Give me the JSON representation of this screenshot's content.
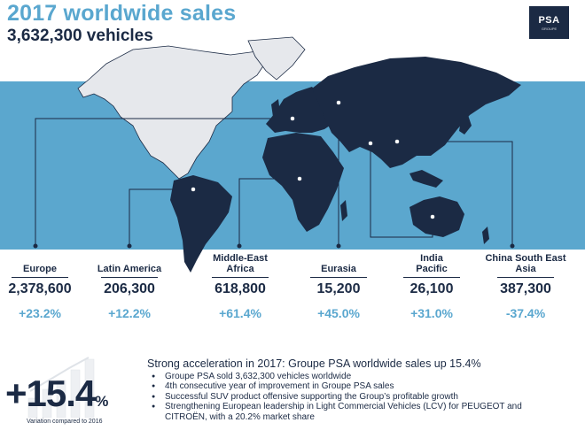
{
  "header": {
    "title": "2017 worldwide sales",
    "subtitle": "3,632,300 vehicles",
    "logo": {
      "text": "PSA",
      "tagline": "GROUPE"
    }
  },
  "regions": [
    {
      "name": "Europe",
      "value": "2,378,600",
      "change": "+23.2%"
    },
    {
      "name": "Latin America",
      "value": "206,300",
      "change": "+12.2%"
    },
    {
      "name": "Middle-East Africa",
      "value": "618,800",
      "change": "+61.4%"
    },
    {
      "name": "Eurasia",
      "value": "15,200",
      "change": "+45.0%"
    },
    {
      "name": "India Pacific",
      "value": "26,100",
      "change": "+31.0%"
    },
    {
      "name": "China South East Asia",
      "value": "387,300",
      "change": "-37.4%"
    }
  ],
  "summary": {
    "big_number": "+15.4",
    "big_unit": "%",
    "caption": "Variation compared to 2016",
    "headline": "Strong acceleration in 2017: Groupe PSA worldwide sales up 15.4%",
    "bullets": [
      "Groupe PSA sold 3,632,300  vehicles worldwide",
      "4th consecutive  year of improvement  in Groupe PSA sales",
      "Successful SUV product offensive supporting the Group’s profitable growth",
      "Strengthening European leadership in Light Commercial Vehicles (LCV) for PEUGEOT  and CITROËN,  with a 20.2% market share"
    ]
  },
  "colors": {
    "navy": "#1b2a44",
    "accent": "#5aa7cf",
    "band": "#5ba7ce"
  }
}
